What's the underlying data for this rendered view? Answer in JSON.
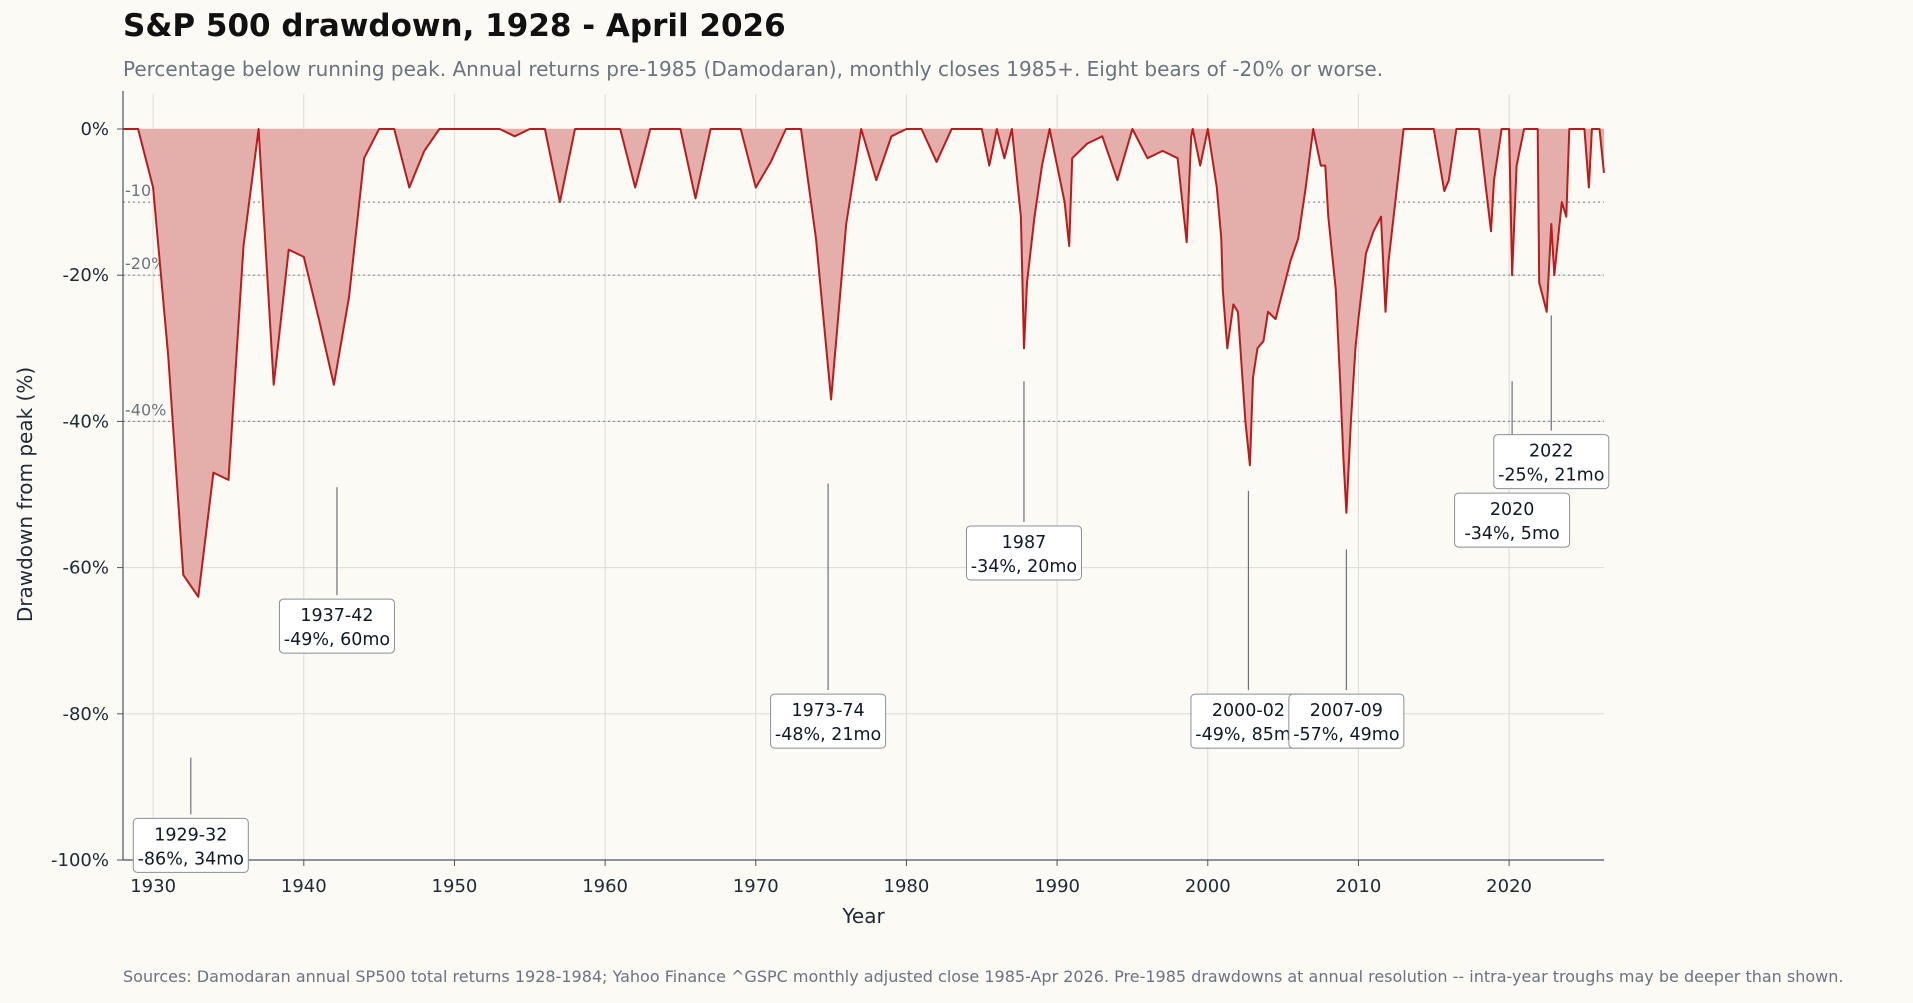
{
  "title": "S&P 500 drawdown, 1928 - April 2026",
  "subtitle": "Percentage below running peak. Annual returns pre-1985 (Damodaran), monthly closes 1985+. Eight bears of -20% or worse.",
  "source": "Sources: Damodaran annual SP500 total returns 1928-1984; Yahoo Finance ^GSPC monthly adjusted close 1985-Apr 2026. Pre-1985 drawdowns at annual resolution -- intra-year troughs may be deeper than shown.",
  "colors": {
    "background": "#fbfaf4",
    "line": "#b91c1c",
    "fill": "#e4aeab",
    "grid": "#dcdcd6",
    "reference": "#8a8f98",
    "axis": "#4b5563"
  },
  "chart_data": {
    "type": "area",
    "xlabel": "Year",
    "ylabel": "Drawdown from peak (%)",
    "xlim": [
      1928,
      2026.3
    ],
    "ylim": [
      -100,
      0
    ],
    "x_ticks": [
      1930,
      1940,
      1950,
      1960,
      1970,
      1980,
      1990,
      2000,
      2010,
      2020
    ],
    "y_ticks": [
      {
        "value": 0,
        "label": "0%"
      },
      {
        "value": -20,
        "label": "-20%"
      },
      {
        "value": -40,
        "label": "-40%"
      },
      {
        "value": -60,
        "label": "-60%"
      },
      {
        "value": -80,
        "label": "-80%"
      },
      {
        "value": -100,
        "label": "-100%"
      }
    ],
    "grid": true,
    "reference_lines": [
      {
        "value": -10,
        "label": "-10%"
      },
      {
        "value": -20,
        "label": "-20%"
      },
      {
        "value": -40,
        "label": "-40%"
      }
    ],
    "series": [
      {
        "x": [
          1928,
          1929,
          1930,
          1931,
          1932,
          1933,
          1934,
          1935,
          1936,
          1937,
          1938,
          1939,
          1940,
          1941,
          1942,
          1943,
          1944,
          1945,
          1946,
          1947,
          1948,
          1949,
          1950,
          1951,
          1952,
          1953,
          1954,
          1955,
          1956,
          1957,
          1958,
          1959,
          1960,
          1961,
          1962,
          1963,
          1964,
          1965,
          1966,
          1967,
          1968,
          1969,
          1970,
          1971,
          1972,
          1973,
          1974,
          1975,
          1976,
          1977,
          1978,
          1979,
          1980,
          1981,
          1982,
          1983,
          1984,
          1985,
          1985.5,
          1986,
          1986.5,
          1987,
          1987.6,
          1987.8,
          1988,
          1988.5,
          1989,
          1989.5,
          1990,
          1990.5,
          1990.8,
          1991,
          1992,
          1993,
          1994,
          1995,
          1996,
          1997,
          1998,
          1998.6,
          1998.9,
          1999,
          1999.5,
          2000,
          2000.6,
          2000.9,
          2001,
          2001.3,
          2001.7,
          2002,
          2002.5,
          2002.8,
          2003,
          2003.3,
          2003.7,
          2004,
          2004.5,
          2005,
          2005.5,
          2006,
          2006.5,
          2007,
          2007.5,
          2007.8,
          2008,
          2008.5,
          2008.8,
          2009,
          2009.2,
          2009.5,
          2009.8,
          2010,
          2010.5,
          2011,
          2011.5,
          2011.8,
          2012,
          2012.5,
          2013,
          2014,
          2015,
          2015.7,
          2016,
          2016.5,
          2017,
          2018,
          2018.8,
          2019,
          2019.5,
          2020,
          2020.2,
          2020.5,
          2021,
          2021.9,
          2022,
          2022.5,
          2022.8,
          2023,
          2023.5,
          2023.8,
          2024,
          2024.5,
          2025,
          2025.3,
          2025.5,
          2026,
          2026.3
        ],
        "y": [
          0,
          0,
          -8,
          -31,
          -61,
          -64,
          -47,
          -48,
          -16,
          0,
          -35,
          -16.5,
          -17.5,
          -26,
          -35,
          -23,
          -4,
          0,
          0,
          -8,
          -3,
          0,
          0,
          0,
          0,
          0,
          -1,
          0,
          0,
          -10,
          0,
          0,
          0,
          0,
          -8,
          0,
          0,
          0,
          -9.5,
          0,
          0,
          0,
          -8,
          -4.5,
          0,
          0,
          -15,
          -37,
          -13,
          0,
          -7,
          -1,
          0,
          0,
          -4.5,
          0,
          0,
          0,
          -5,
          0,
          -4,
          0,
          -12,
          -30,
          -21,
          -12,
          -5,
          0,
          -5,
          -10,
          -16,
          -4,
          -2,
          -1,
          -7,
          0,
          -4,
          -3,
          -4,
          -15.5,
          -1,
          0,
          -5,
          0,
          -8,
          -15,
          -22,
          -30,
          -24,
          -25,
          -40,
          -46,
          -34,
          -30,
          -29,
          -25,
          -26,
          -22,
          -18,
          -15,
          -8,
          0,
          -5,
          -5,
          -12,
          -22,
          -35,
          -45,
          -52.5,
          -40,
          -30,
          -26,
          -17,
          -14,
          -12,
          -25,
          -18,
          -9,
          0,
          0,
          0,
          -8.5,
          -7,
          0,
          0,
          0,
          -14,
          -7,
          0,
          0,
          -20,
          -5,
          0,
          0,
          -21,
          -25,
          -13,
          -20,
          -10,
          -12,
          0,
          0,
          0,
          -8,
          0,
          0,
          -6
        ]
      }
    ],
    "annotations": [
      {
        "label": "1929-32",
        "detail": "-86%, 34mo",
        "year": 1932.5,
        "value": -86
      },
      {
        "label": "1937-42",
        "detail": "-49%, 60mo",
        "year": 1942.2,
        "value": -49
      },
      {
        "label": "1973-74",
        "detail": "-48%, 21mo",
        "year": 1974.8,
        "value": -48
      },
      {
        "label": "1987",
        "detail": "-34%, 20mo",
        "year": 1987.8,
        "value": -34
      },
      {
        "label": "2000-02",
        "detail": "-49%, 85mo",
        "year": 2002.7,
        "value": -49
      },
      {
        "label": "2007-09",
        "detail": "-57%, 49mo",
        "year": 2009.2,
        "value": -57
      },
      {
        "label": "2020",
        "detail": "-34%, 5mo",
        "year": 2020.2,
        "value": -34
      },
      {
        "label": "2022",
        "detail": "-25%, 21mo",
        "year": 2022.8,
        "value": -25
      }
    ]
  }
}
